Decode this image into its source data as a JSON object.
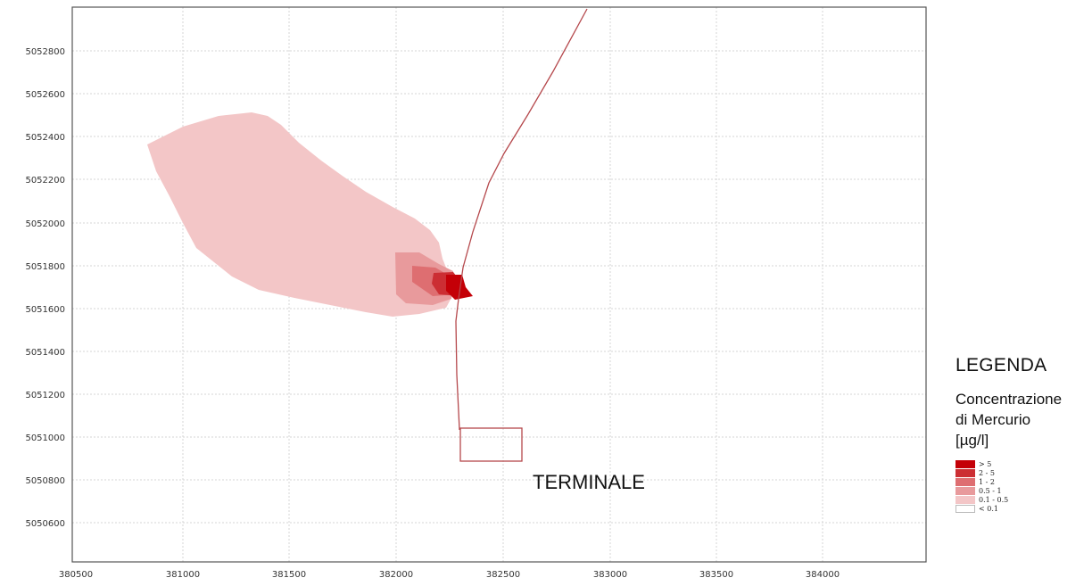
{
  "map": {
    "x_ticks": [
      "380500",
      "381000",
      "381500",
      "382000",
      "382500",
      "383000",
      "383500",
      "384000"
    ],
    "y_ticks": [
      "5052800",
      "5052600",
      "5052400",
      "5052200",
      "5052000",
      "5051800",
      "5051600",
      "5051400",
      "5051200",
      "5051000",
      "5050800",
      "5050600"
    ],
    "terminal_label": "TERMINALE",
    "plume_colors": {
      "0.1 - 0.5": "#f3c6c7",
      "0.5 - 1": "#e89a9c",
      "1 - 2": "#de6e71",
      "2 - 5": "#cc2e33",
      "> 5": "#c40007"
    },
    "line_color": "#b5484c"
  },
  "legend": {
    "title": "LEGENDA",
    "subtitle_line1": "Concentrazione",
    "subtitle_line2": "di Mercurio",
    "subtitle_line3": "[µg/l]",
    "items": [
      {
        "label": "> 5",
        "color": "#c40007"
      },
      {
        "label": "2 - 5",
        "color": "#cc2e33"
      },
      {
        "label": "1 - 2",
        "color": "#de6e71"
      },
      {
        "label": "0.5 - 1",
        "color": "#e89a9c"
      },
      {
        "label": "0.1 - 0.5",
        "color": "#f3c6c7"
      },
      {
        "label": "< 0.1",
        "color": "#ffffff"
      }
    ]
  }
}
